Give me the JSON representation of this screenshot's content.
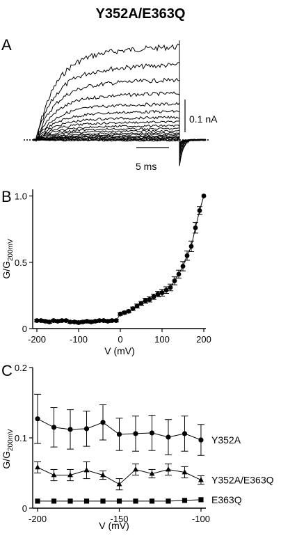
{
  "figure_title": "Y352A/E363Q",
  "panel_a": {
    "label": "A",
    "scale_current": "0.1 nA",
    "scale_time": "5 ms"
  },
  "chart_data": [
    {
      "panel": "B",
      "type": "scatter",
      "title": "",
      "xlabel": "V (mV)",
      "ylabel_main": "G/G",
      "ylabel_sub": "200mV",
      "xlim": [
        -210,
        205
      ],
      "ylim": [
        0,
        1.05
      ],
      "xticks": [
        -200,
        -100,
        0,
        100,
        200
      ],
      "yticks": [
        0,
        0.5,
        1.0
      ],
      "ytick_labels": [
        "0",
        "0.5",
        "1.0"
      ],
      "grid": false,
      "series": [
        {
          "marker": "circle",
          "x": [
            -200,
            -190,
            -180,
            -170,
            -160,
            -150,
            -140,
            -130,
            -120,
            -110,
            -100,
            -90,
            -80,
            -70,
            -60,
            -50,
            -40,
            -30,
            -20,
            -10,
            0,
            10,
            20,
            30,
            40,
            50,
            60,
            70,
            80,
            90,
            100,
            110,
            120,
            130,
            140,
            150,
            160,
            170,
            180,
            190,
            200
          ],
          "y": [
            0.06,
            0.06,
            0.055,
            0.05,
            0.06,
            0.055,
            0.06,
            0.06,
            0.05,
            0.05,
            0.045,
            0.05,
            0.055,
            0.05,
            0.055,
            0.06,
            0.06,
            0.055,
            0.06,
            0.06,
            0.11,
            0.12,
            0.13,
            0.15,
            0.17,
            0.19,
            0.21,
            0.22,
            0.24,
            0.26,
            0.27,
            0.29,
            0.31,
            0.36,
            0.41,
            0.47,
            0.55,
            0.62,
            0.76,
            0.89,
            1.0
          ],
          "err": [
            0.01,
            0.01,
            0.01,
            0.01,
            0.01,
            0.01,
            0.01,
            0.01,
            0.01,
            0.01,
            0.01,
            0.01,
            0.01,
            0.01,
            0.01,
            0.01,
            0.01,
            0.01,
            0.01,
            0.01,
            0.01,
            0.01,
            0.01,
            0.012,
            0.015,
            0.015,
            0.018,
            0.02,
            0.02,
            0.02,
            0.025,
            0.025,
            0.025,
            0.03,
            0.03,
            0.035,
            0.035,
            0.04,
            0.04,
            0.03,
            0.0
          ]
        }
      ]
    },
    {
      "panel": "C",
      "type": "line",
      "title": "",
      "xlabel": "V (mV)",
      "ylabel_main": "G/G",
      "ylabel_sub": "200mV",
      "xlim": [
        -203,
        -97
      ],
      "ylim": [
        0,
        0.2
      ],
      "xticks": [
        -200,
        -150,
        -100
      ],
      "yticks": [
        0,
        0.1,
        0.2
      ],
      "ytick_labels": [
        "0",
        "0.1",
        "0.2"
      ],
      "grid": false,
      "x": [
        -200,
        -190,
        -180,
        -170,
        -160,
        -150,
        -140,
        -130,
        -120,
        -110,
        -100
      ],
      "series": [
        {
          "name": "Y352A",
          "marker": "circle",
          "values": [
            0.127,
            0.115,
            0.112,
            0.113,
            0.122,
            0.105,
            0.106,
            0.107,
            0.101,
            0.106,
            0.097
          ],
          "err": [
            0.035,
            0.028,
            0.028,
            0.025,
            0.025,
            0.023,
            0.025,
            0.025,
            0.025,
            0.025,
            0.022
          ]
        },
        {
          "name": "Y352A/E363Q",
          "marker": "triangle",
          "values": [
            0.058,
            0.047,
            0.047,
            0.054,
            0.047,
            0.034,
            0.055,
            0.049,
            0.055,
            0.051,
            0.04
          ],
          "err": [
            0.008,
            0.008,
            0.008,
            0.012,
            0.006,
            0.008,
            0.008,
            0.006,
            0.008,
            0.008,
            0.006
          ]
        },
        {
          "name": "E363Q",
          "marker": "square",
          "values": [
            0.01,
            0.01,
            0.01,
            0.01,
            0.01,
            0.01,
            0.01,
            0.01,
            0.01,
            0.011,
            0.012
          ],
          "err": [
            0.001,
            0.001,
            0.001,
            0.001,
            0.001,
            0.001,
            0.001,
            0.001,
            0.001,
            0.001,
            0.001
          ]
        }
      ]
    }
  ]
}
